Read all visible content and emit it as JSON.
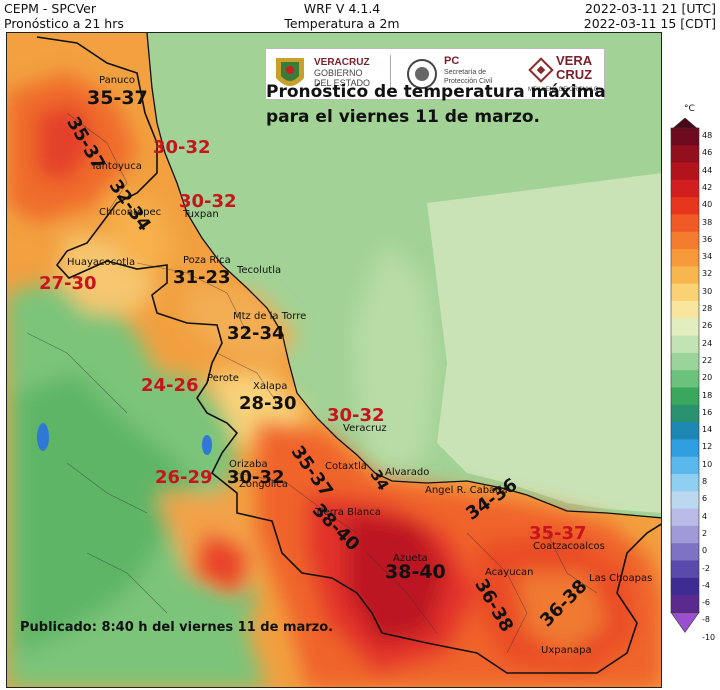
{
  "header": {
    "left_line1": "CEPM - SPCVer",
    "left_line2": "Pronóstico a 21 hrs",
    "center_line1": "WRF V 4.1.4",
    "center_line2": "Temperatura a 2m",
    "right_line1": "2022-03-11 21 [UTC]",
    "right_line2": "2022-03-11 15 [CDT]"
  },
  "title_line1": "Pronóstico de temperatura máxima",
  "title_line2": "para el viernes 11 de marzo.",
  "published": "Publicado: 8:40 h del viernes 11 de marzo.",
  "logos": {
    "veracruz_line1": "VERACRUZ",
    "veracruz_line2": "GOBIERNO",
    "veracruz_line3": "DEL ESTADO",
    "pc_abbr": "PC",
    "pc_line1": "Secretaría de",
    "pc_line2": "Protección Civil",
    "vc_line1": "VERA",
    "vc_line2": "CRUZ",
    "vc_slogan": "ME LLENA DE ORGULLO"
  },
  "cities": {
    "panuco": "Panuco",
    "tantoyuca": "Tantoyuca",
    "tuxpan": "Tuxpan",
    "chicontepec": "Chicontepec",
    "huayacocotla": "Huayacocotla",
    "pozarica": "Poza Rica",
    "tecolutla": "Tecolutla",
    "martinez": "Mtz de la Torre",
    "perote": "Perote",
    "xalapa": "Xalapa",
    "veracruz": "Veracruz",
    "orizaba": "Orizaba",
    "zongolica": "Zongolica",
    "cotaxtla": "Cotaxtla",
    "alvarado": "Alvarado",
    "tierrablanca": "Tierra Blanca",
    "angel": "Angel R. Cabada",
    "azueta": "Azueta",
    "acayucan": "Acayucan",
    "coatzacoalcos": "Coatzacoalcos",
    "laschoapas": "Las Choapas",
    "uxpanapa": "Uxpanapa"
  },
  "ranges": {
    "r_panuco": "35-37",
    "r_west_n": "35-37",
    "r_coast_n": "30-32",
    "r_tuxpan": "30-32",
    "r_chicon": "32-34",
    "r_huaya": "27-30",
    "r_pozarica": "31-23",
    "r_martinez": "32-34",
    "r_perote": "24-26",
    "r_xalapa": "28-30",
    "r_veracruz": "30-32",
    "r_orizaba_w": "26-29",
    "r_orizaba": "30-32",
    "r_cotaxtla": "35-37",
    "r_alvarado": "34",
    "r_tierra": "38-40",
    "r_azueta": "38-40",
    "r_cabada": "34-36",
    "r_coatza": "35-37",
    "r_acayucan": "36-38",
    "r_choapas": "36-38"
  },
  "colorbar": {
    "unit": "°C",
    "ticks": [
      "48",
      "46",
      "44",
      "42",
      "40",
      "38",
      "36",
      "34",
      "32",
      "30",
      "28",
      "26",
      "24",
      "22",
      "20",
      "18",
      "16",
      "14",
      "12",
      "10",
      "8",
      "6",
      "4",
      "2",
      "0",
      "-2",
      "-4",
      "-6",
      "-8",
      "-10"
    ],
    "colors": [
      "#4a0618",
      "#6e0a1e",
      "#92101e",
      "#b2141c",
      "#d21e1e",
      "#e8361e",
      "#f05a26",
      "#f47c2e",
      "#f69a3a",
      "#f8b64e",
      "#fad274",
      "#f8e69e",
      "#e2eec0",
      "#c2e4b4",
      "#9ad49a",
      "#6cc27c",
      "#3aa85c",
      "#2a9270",
      "#1e88b4",
      "#2e9ee0",
      "#5ab8ec",
      "#8ecff2",
      "#bcd8ef",
      "#b8bce6",
      "#a09ad8",
      "#7e72c4",
      "#5a4aac",
      "#3e2c92",
      "#5a2a8e",
      "#9a4ed0"
    ]
  }
}
